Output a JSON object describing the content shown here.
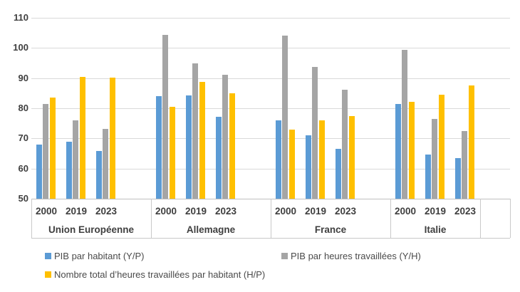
{
  "chart_data": {
    "type": "bar",
    "title": "",
    "xlabel": "",
    "ylabel": "",
    "y_axis": {
      "min": 50,
      "max": 110,
      "step": 10,
      "tick_labels": [
        "110",
        "100",
        "90",
        "80",
        "70",
        "60",
        "50"
      ]
    },
    "grid": true,
    "legend_position": "bottom",
    "groups": [
      "Union Européenne",
      "Allemagne",
      "France",
      "Italie"
    ],
    "years": [
      "2000",
      "2019",
      "2023"
    ],
    "series": [
      {
        "name": "PIB par habitant (Y/P)",
        "key": "pib-par-habitant",
        "color": "#5B9BD5",
        "values": [
          [
            68.0,
            68.9,
            65.8
          ],
          [
            84.0,
            84.3,
            77.2
          ],
          [
            76.0,
            71.0,
            66.5
          ],
          [
            81.4,
            64.6,
            63.5
          ]
        ]
      },
      {
        "name": "PIB par heures travaillées (Y/H)",
        "key": "pib-par-heures-travaillees",
        "color": "#A5A5A5",
        "values": [
          [
            81.4,
            76.1,
            73.1
          ],
          [
            104.3,
            95.0,
            91.0
          ],
          [
            104.1,
            93.6,
            86.1
          ],
          [
            99.4,
            76.4,
            72.5
          ]
        ]
      },
      {
        "name": "Nombre total d’heures travaillées par habitant (H/P)",
        "key": "heures-travaillees-par-habitant",
        "color": "#FFC000",
        "values": [
          [
            83.6,
            90.4,
            90.1
          ],
          [
            80.4,
            88.8,
            84.9
          ],
          [
            72.9,
            76.0,
            77.4
          ],
          [
            82.1,
            84.5,
            87.6
          ]
        ]
      }
    ]
  },
  "colors": {
    "gridline": "#d9d9d9",
    "axis_line": "#bfbfbf",
    "label_box_border": "#c9c9c9",
    "axis_text": "#3f3f3f",
    "legend_text": "#4a4a4a",
    "background": "#ffffff"
  }
}
